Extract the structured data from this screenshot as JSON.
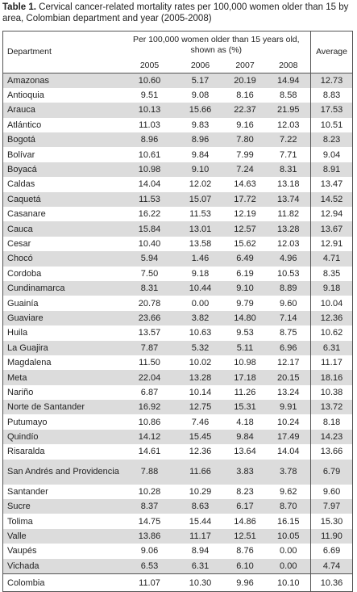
{
  "caption": {
    "label": "Table 1.",
    "text": "Cervical cancer-related mortality rates per 100,000 women older than 15 by area, Colombian department and year (2005-2008)"
  },
  "table": {
    "header": {
      "department": "Department",
      "group": "Per 100,000 women older than 15 years old, shown as (%)",
      "years": [
        "2005",
        "2006",
        "2007",
        "2008"
      ],
      "average": "Average"
    },
    "rows": [
      [
        "Amazonas",
        "10.60",
        "5.17",
        "20.19",
        "14.94",
        "12.73"
      ],
      [
        "Antioquia",
        "9.51",
        "9.08",
        "8.16",
        "8.58",
        "8.83"
      ],
      [
        "Arauca",
        "10.13",
        "15.66",
        "22.37",
        "21.95",
        "17.53"
      ],
      [
        "Atlántico",
        "11.03",
        "9.83",
        "9.16",
        "12.03",
        "10.51"
      ],
      [
        "Bogotá",
        "8.96",
        "8.96",
        "7.80",
        "7.22",
        "8.23"
      ],
      [
        "Bolívar",
        "10.61",
        "9.84",
        "7.99",
        "7.71",
        "9.04"
      ],
      [
        "Boyacá",
        "10.98",
        "9.10",
        "7.24",
        "8.31",
        "8.91"
      ],
      [
        "Caldas",
        "14.04",
        "12.02",
        "14.63",
        "13.18",
        "13.47"
      ],
      [
        "Caquetá",
        "11.53",
        "15.07",
        "17.72",
        "13.74",
        "14.52"
      ],
      [
        "Casanare",
        "16.22",
        "11.53",
        "12.19",
        "11.82",
        "12.94"
      ],
      [
        "Cauca",
        "15.84",
        "13.01",
        "12.57",
        "13.28",
        "13.67"
      ],
      [
        "Cesar",
        "10.40",
        "13.58",
        "15.62",
        "12.03",
        "12.91"
      ],
      [
        "Chocó",
        "5.94",
        "1.46",
        "6.49",
        "4.96",
        "4.71"
      ],
      [
        "Cordoba",
        "7.50",
        "9.18",
        "6.19",
        "10.53",
        "8.35"
      ],
      [
        "Cundinamarca",
        "8.31",
        "10.44",
        "9.10",
        "8.89",
        "9.18"
      ],
      [
        "Guainía",
        "20.78",
        "0.00",
        "9.79",
        "9.60",
        "10.04"
      ],
      [
        "Guaviare",
        "23.66",
        "3.82",
        "14.80",
        "7.14",
        "12.36"
      ],
      [
        "Huila",
        "13.57",
        "10.63",
        "9.53",
        "8.75",
        "10.62"
      ],
      [
        "La Guajira",
        "7.87",
        "5.32",
        "5.11",
        "6.96",
        "6.31"
      ],
      [
        "Magdalena",
        "11.50",
        "10.02",
        "10.98",
        "12.17",
        "11.17"
      ],
      [
        "Meta",
        "22.04",
        "13.28",
        "17.18",
        "20.15",
        "18.16"
      ],
      [
        "Nariño",
        "6.87",
        "10.14",
        "11.26",
        "13.24",
        "10.38"
      ],
      [
        "Norte de Santander",
        "16.92",
        "12.75",
        "15.31",
        "9.91",
        "13.72"
      ],
      [
        "Putumayo",
        "10.86",
        "7.46",
        "4.18",
        "10.24",
        "8.18"
      ],
      [
        "Quindío",
        "14.12",
        "15.45",
        "9.84",
        "17.49",
        "14.23"
      ],
      [
        "Risaralda",
        "14.61",
        "12.36",
        "13.64",
        "14.04",
        "13.66"
      ],
      [
        "San Andrés and Providencia",
        "7.88",
        "11.66",
        "3.83",
        "3.78",
        "6.79"
      ],
      [
        "Santander",
        "10.28",
        "10.29",
        "8.23",
        "9.62",
        "9.60"
      ],
      [
        "Sucre",
        "8.37",
        "8.63",
        "6.17",
        "8.70",
        "7.97"
      ],
      [
        "Tolima",
        "14.75",
        "15.44",
        "14.86",
        "16.15",
        "15.30"
      ],
      [
        "Valle",
        "13.86",
        "11.17",
        "12.51",
        "10.05",
        "11.90"
      ],
      [
        "Vaupés",
        "9.06",
        "8.94",
        "8.76",
        "0.00",
        "6.69"
      ],
      [
        "Vichada",
        "6.53",
        "6.31",
        "6.10",
        "0.00",
        "4.74"
      ]
    ],
    "total": [
      "Colombia",
      "11.07",
      "10.30",
      "9.96",
      "10.10",
      "10.36"
    ]
  }
}
